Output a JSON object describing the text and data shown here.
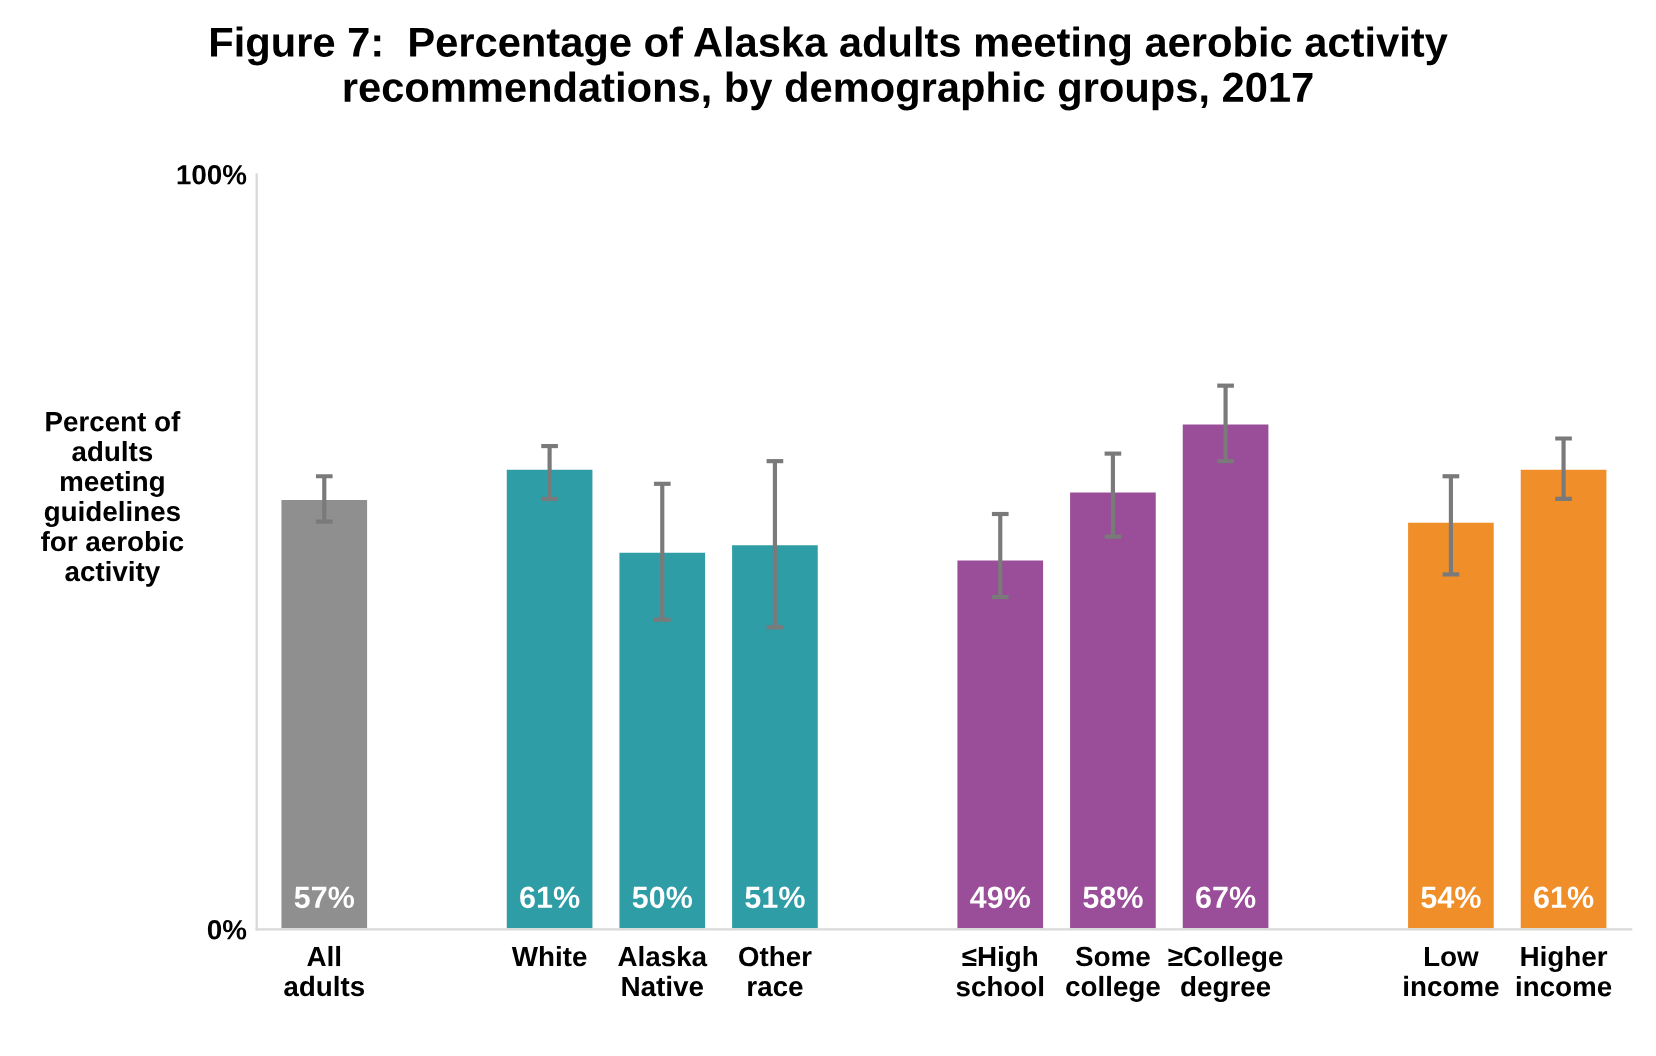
{
  "chart_data": {
    "type": "bar",
    "title": "Figure 7:  Percentage of Alaska adults meeting aerobic activity\nrecommendations, by demographic groups, 2017",
    "ylabel": "Percent of\nadults\nmeeting\nguidelines\nfor aerobic\nactivity",
    "categories": [
      "All\nadults",
      null,
      "White",
      "Alaska\nNative",
      "Other\nrace",
      null,
      "≤High\nschool",
      "Some\ncollege",
      "≥College\ndegree",
      null,
      "Low\nincome",
      "Higher\nincome"
    ],
    "values": [
      57,
      null,
      61,
      50,
      51,
      null,
      49,
      58,
      67,
      null,
      54,
      61
    ],
    "colors": [
      "#8f8f8f",
      null,
      "#2e9da6",
      "#2e9da6",
      "#2e9da6",
      null,
      "#9a4d98",
      "#9a4d98",
      "#9a4d98",
      null,
      "#f08f2a",
      "#f08f2a"
    ],
    "errors": [
      [
        54,
        60
      ],
      null,
      [
        57,
        64
      ],
      [
        41,
        59
      ],
      [
        40,
        62
      ],
      null,
      [
        44,
        55
      ],
      [
        52,
        63
      ],
      [
        62,
        72
      ],
      null,
      [
        47,
        60
      ],
      [
        57,
        65
      ]
    ],
    "value_labels": [
      "57%",
      null,
      "61%",
      "50%",
      "51%",
      null,
      "49%",
      "58%",
      "67%",
      null,
      "54%",
      "61%"
    ],
    "ylim": [
      0,
      100
    ],
    "yticks": [
      {
        "value": 0,
        "label": "0%"
      },
      {
        "value": 100,
        "label": "100%"
      }
    ],
    "grid": false,
    "legend": false
  }
}
